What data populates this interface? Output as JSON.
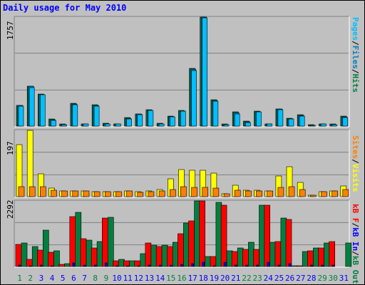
{
  "title": "Daily usage for May 2010",
  "colors": {
    "pages": "#00c0ff",
    "files": "#0080c0",
    "hits": "#008040",
    "visits": "#ffff00",
    "sites": "#ff8000",
    "kb_f": "#ff0000",
    "kb_in": "#0000ff",
    "kb_out": "#008040",
    "weekend_day": "#008040",
    "weekday": "#0000ff"
  },
  "right_labels": {
    "top": [
      {
        "text": "Pages",
        "color": "#00c0ff"
      },
      {
        "text": "/",
        "color": "#000000"
      },
      {
        "text": "Files",
        "color": "#0080c0"
      },
      {
        "text": "/",
        "color": "#000000"
      },
      {
        "text": "Hits",
        "color": "#008040"
      }
    ],
    "mid": [
      {
        "text": "Sites",
        "color": "#ff8000"
      },
      {
        "text": "/",
        "color": "#000000"
      },
      {
        "text": "Visits",
        "color": "#ffff00"
      }
    ],
    "bottom": [
      {
        "text": "kB F",
        "color": "#ff0000"
      },
      {
        "text": "/",
        "color": "#000000"
      },
      {
        "text": "kB In",
        "color": "#0000ff"
      },
      {
        "text": "/",
        "color": "#000000"
      },
      {
        "text": "kB Out",
        "color": "#008040"
      }
    ]
  },
  "chart_data": [
    {
      "type": "bar",
      "panel": "hits_files_pages",
      "max_label": "1757",
      "ylim": [
        0,
        1757
      ],
      "categories": [
        "1",
        "2",
        "3",
        "4",
        "5",
        "6",
        "7",
        "8",
        "9",
        "10",
        "11",
        "12",
        "13",
        "14",
        "15",
        "16",
        "17",
        "18",
        "19",
        "20",
        "21",
        "22",
        "23",
        "24",
        "25",
        "26",
        "27",
        "28",
        "29",
        "30",
        "31"
      ],
      "weekend_days": [
        "1",
        "2",
        "8",
        "9",
        "15",
        "16",
        "22",
        "23",
        "29",
        "30"
      ],
      "series": [
        {
          "name": "Hits",
          "values": [
            330,
            640,
            520,
            110,
            30,
            370,
            40,
            340,
            50,
            40,
            140,
            200,
            260,
            50,
            160,
            250,
            930,
            1757,
            420,
            30,
            230,
            80,
            240,
            40,
            280,
            130,
            180,
            20,
            40,
            30,
            160
          ]
        },
        {
          "name": "Files",
          "values": [
            330,
            640,
            510,
            100,
            20,
            360,
            30,
            330,
            40,
            30,
            130,
            190,
            250,
            40,
            150,
            240,
            920,
            1757,
            410,
            20,
            220,
            70,
            230,
            30,
            270,
            120,
            170,
            10,
            30,
            20,
            150
          ]
        },
        {
          "name": "Pages",
          "values": [
            320,
            620,
            500,
            90,
            20,
            350,
            30,
            320,
            40,
            30,
            120,
            180,
            250,
            40,
            150,
            240,
            900,
            1740,
            400,
            20,
            200,
            60,
            230,
            30,
            260,
            110,
            160,
            10,
            30,
            20,
            140
          ]
        }
      ],
      "grid": true
    },
    {
      "type": "bar",
      "panel": "visits_sites",
      "max_label": "197",
      "ylim": [
        0,
        197
      ],
      "categories": [
        "1",
        "2",
        "3",
        "4",
        "5",
        "6",
        "7",
        "8",
        "9",
        "10",
        "11",
        "12",
        "13",
        "14",
        "15",
        "16",
        "17",
        "18",
        "19",
        "20",
        "21",
        "22",
        "23",
        "24",
        "25",
        "26",
        "27",
        "28",
        "29",
        "30",
        "31"
      ],
      "series": [
        {
          "name": "Visits",
          "values": [
            155,
            197,
            68,
            25,
            18,
            18,
            16,
            15,
            15,
            15,
            18,
            14,
            18,
            22,
            52,
            80,
            78,
            78,
            70,
            8,
            34,
            20,
            20,
            18,
            62,
            90,
            42,
            4,
            14,
            18,
            32
          ]
        },
        {
          "name": "Sites",
          "values": [
            30,
            30,
            30,
            20,
            18,
            18,
            16,
            15,
            15,
            14,
            16,
            12,
            14,
            16,
            22,
            30,
            28,
            28,
            26,
            8,
            20,
            16,
            16,
            16,
            28,
            30,
            22,
            4,
            14,
            16,
            22
          ]
        }
      ],
      "grid": true
    },
    {
      "type": "bar",
      "panel": "kilobytes",
      "max_label": "2292",
      "ylim": [
        0,
        2292
      ],
      "categories": [
        "1",
        "2",
        "3",
        "4",
        "5",
        "6",
        "7",
        "8",
        "9",
        "10",
        "11",
        "12",
        "13",
        "14",
        "15",
        "16",
        "17",
        "18",
        "19",
        "20",
        "21",
        "22",
        "23",
        "24",
        "25",
        "26",
        "27",
        "28",
        "29",
        "30",
        "31"
      ],
      "series": [
        {
          "name": "kB F",
          "values": [
            770,
            250,
            570,
            500,
            80,
            1740,
            960,
            640,
            1700,
            200,
            200,
            200,
            830,
            710,
            710,
            1140,
            1590,
            2292,
            360,
            2150,
            520,
            590,
            610,
            2140,
            880,
            1650,
            30,
            540,
            640,
            880,
            0
          ]
        },
        {
          "name": "kB In",
          "values": [
            60,
            20,
            40,
            20,
            10,
            120,
            60,
            40,
            120,
            20,
            20,
            20,
            60,
            50,
            50,
            80,
            100,
            140,
            20,
            140,
            40,
            40,
            40,
            150,
            60,
            110,
            5,
            40,
            40,
            60,
            0
          ]
        },
        {
          "name": "kB Out",
          "values": [
            820,
            700,
            1280,
            550,
            100,
            1900,
            930,
            880,
            1720,
            240,
            200,
            450,
            740,
            740,
            840,
            1520,
            2292,
            360,
            2240,
            560,
            650,
            840,
            2140,
            840,
            1700,
            30,
            520,
            640,
            820,
            0,
            820
          ]
        }
      ],
      "grid": true
    }
  ]
}
